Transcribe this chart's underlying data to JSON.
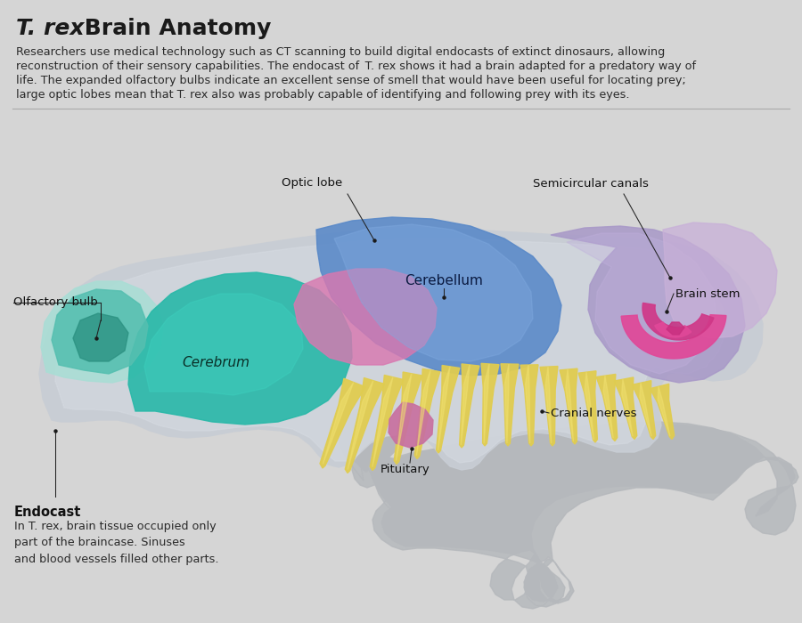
{
  "bg_color": "#d5d5d5",
  "title_italic": "T. rex",
  "title_rest": " Brain Anatomy",
  "body_text_lines": [
    "Researchers use medical technology such as CT scanning to build digital endocasts of extinct dinosaurs, allowing",
    "reconstruction of their sensory capabilities. The endocast of  T. rex shows it had a brain adapted for a predatory way of",
    "life. The expanded olfactory bulbs indicate an excellent sense of smell that would have been useful for locating prey;",
    "large optic lobes mean that T. rex also was probably capable of identifying and following prey with its eyes."
  ],
  "endocast_bold": "Endocast",
  "endocast_body": "In T. rex, brain tissue occupied only\npart of the braincase. Sinuses\nand blood vessels filled other parts.",
  "colors": {
    "outer_shell": "#c8cdd4",
    "outer_edge": "#9aa2aa",
    "olf_light": "#aaddd5",
    "olf_mid": "#55bfb0",
    "olf_dark": "#2a9080",
    "cerebrum_main": "#28b8a8",
    "cerebrum_highlight": "#3dd0be",
    "midbrain_pink": "#d878b0",
    "cerebellum_blue": "#5888c8",
    "cerebellum_light": "#80aae0",
    "brainstem_lavender": "#a898c8",
    "brainstem_light": "#c0b0dc",
    "semicanals_bg": "#c8b0d8",
    "semicanals_pink": "#e04898",
    "cranial_yellow": "#e0cc50",
    "cranial_highlight": "#f0e070",
    "pituitary": "#c870a0",
    "trex_silhouette": "#b5b8bc"
  }
}
